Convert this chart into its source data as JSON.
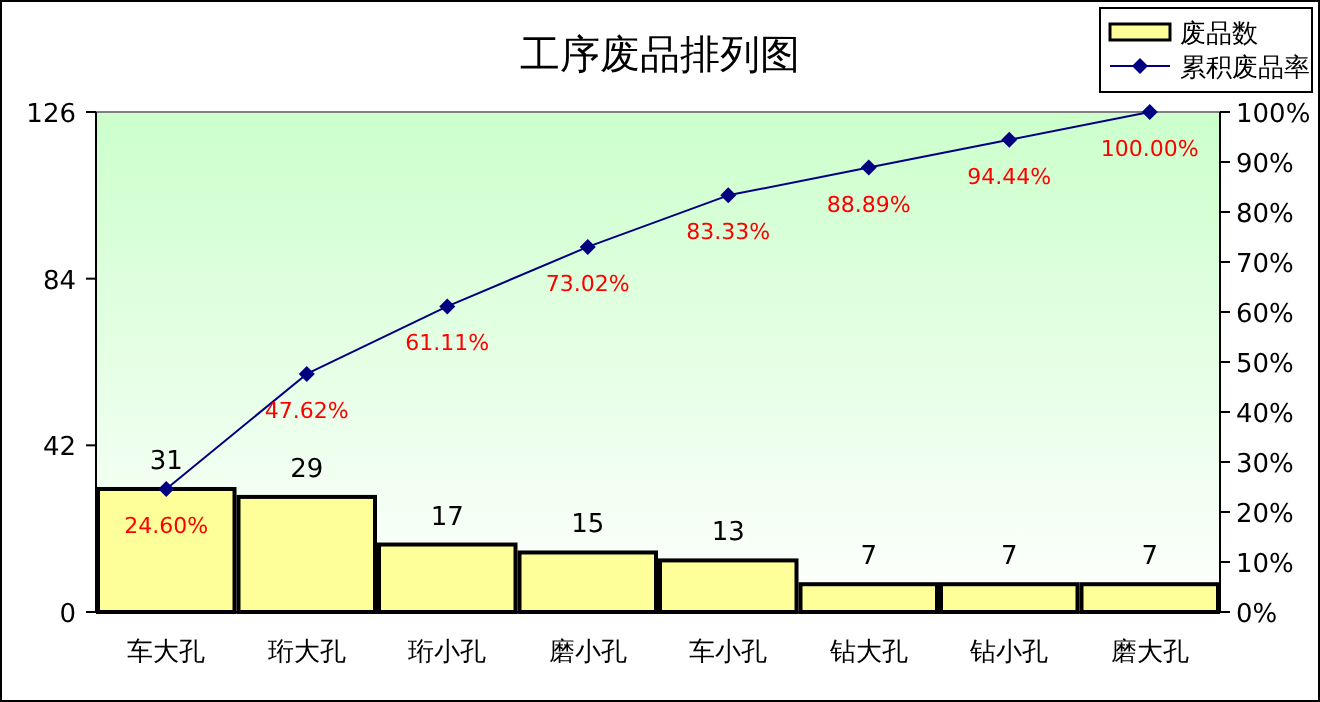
{
  "chart_data": {
    "type": "bar",
    "title": "工序废品排列图",
    "categories": [
      "车大孔",
      "珩大孔",
      "珩小孔",
      "磨小孔",
      "车小孔",
      "钻大孔",
      "钻小孔",
      "磨大孔"
    ],
    "series": [
      {
        "name": "废品数",
        "color": "#ffff99",
        "values": [
          31,
          29,
          17,
          15,
          13,
          7,
          7,
          7
        ],
        "value_labels": [
          "31",
          "29",
          "17",
          "15",
          "13",
          "7",
          "7",
          "7"
        ]
      },
      {
        "name": "累积废品率",
        "type": "line",
        "axis": "y2",
        "color": "#000080",
        "marker": "diamond",
        "values": [
          24.6,
          47.62,
          61.11,
          73.02,
          83.33,
          88.89,
          94.44,
          100.0
        ],
        "value_labels": [
          "24.60%",
          "47.62%",
          "61.11%",
          "73.02%",
          "83.33%",
          "88.89%",
          "94.44%",
          "100.00%"
        ]
      }
    ],
    "ylim": [
      0,
      126
    ],
    "yticks": [
      0,
      42,
      84,
      126
    ],
    "y2lim": [
      0,
      100
    ],
    "y2ticks": [
      {
        "value": 0,
        "label": "0%"
      },
      {
        "value": 10,
        "label": "10%"
      },
      {
        "value": 20,
        "label": "20%"
      },
      {
        "value": 30,
        "label": "30%"
      },
      {
        "value": 40,
        "label": "40%"
      },
      {
        "value": 50,
        "label": "50%"
      },
      {
        "value": 60,
        "label": "60%"
      },
      {
        "value": 70,
        "label": "70%"
      },
      {
        "value": 80,
        "label": "80%"
      },
      {
        "value": 90,
        "label": "90%"
      },
      {
        "value": 100,
        "label": "100%"
      }
    ],
    "legend": "top right",
    "grid": false
  }
}
